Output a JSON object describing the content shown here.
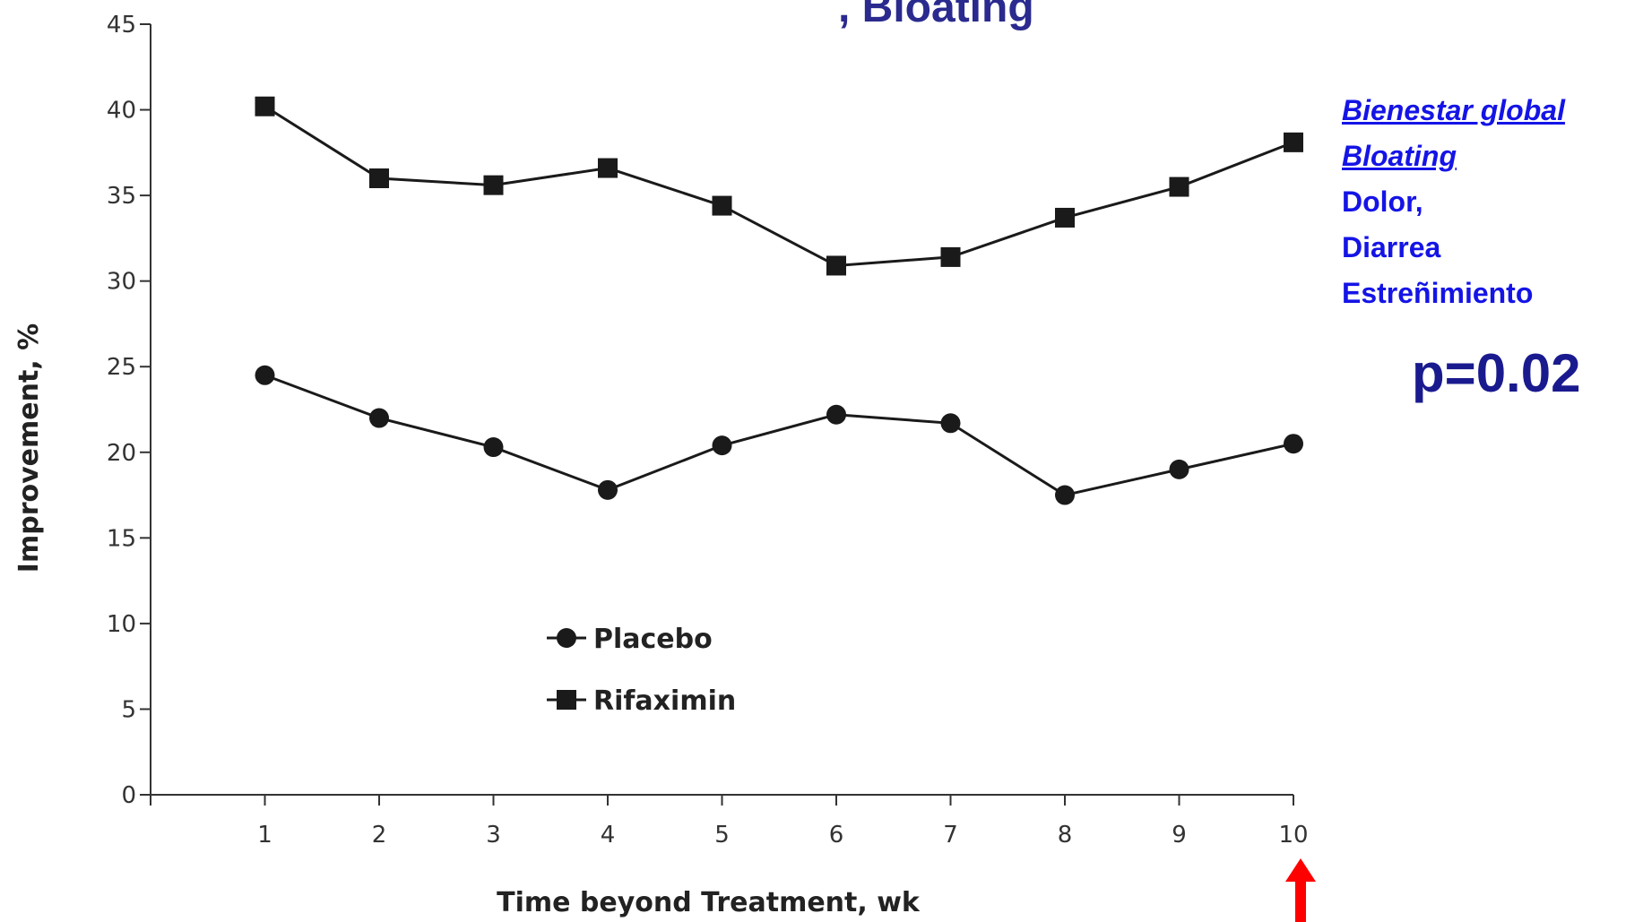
{
  "title_fragment": ", Bloating",
  "side_panel": {
    "items": [
      {
        "text": "Bienestar global",
        "underline": true
      },
      {
        "text": "Bloating",
        "underline": true
      },
      {
        "text": "Dolor,",
        "underline": false
      },
      {
        "text": "Diarrea",
        "underline": false
      },
      {
        "text": "Estreñimiento",
        "underline": false
      }
    ],
    "p_value": "p=0.02"
  },
  "colors": {
    "series": "#1a1a1a",
    "accent_text": "#1414e6",
    "p_value": "#1a1a8f",
    "title": "#2a2a8f",
    "arrow": "#ff0000"
  },
  "annotations": {
    "arrow_at_week": 10,
    "arrow_direction": "up"
  },
  "chart_data": {
    "type": "line",
    "xlabel": "Time beyond Treatment, wk",
    "ylabel": "Improvement, %",
    "x": [
      1,
      2,
      3,
      4,
      5,
      6,
      7,
      8,
      9,
      10
    ],
    "xlim": [
      0,
      10
    ],
    "ylim": [
      0,
      45
    ],
    "yticks": [
      0,
      5,
      10,
      15,
      20,
      25,
      30,
      35,
      40,
      45
    ],
    "grid": false,
    "legend_position": "lower-center",
    "series": [
      {
        "name": "Placebo",
        "marker": "circle",
        "values": [
          24.5,
          22.0,
          20.3,
          17.8,
          20.4,
          22.2,
          21.7,
          17.5,
          19.0,
          20.5
        ]
      },
      {
        "name": "Rifaximin",
        "marker": "square",
        "values": [
          40.2,
          36.0,
          35.6,
          36.6,
          34.4,
          30.9,
          31.4,
          33.7,
          35.5,
          38.1
        ]
      }
    ]
  }
}
